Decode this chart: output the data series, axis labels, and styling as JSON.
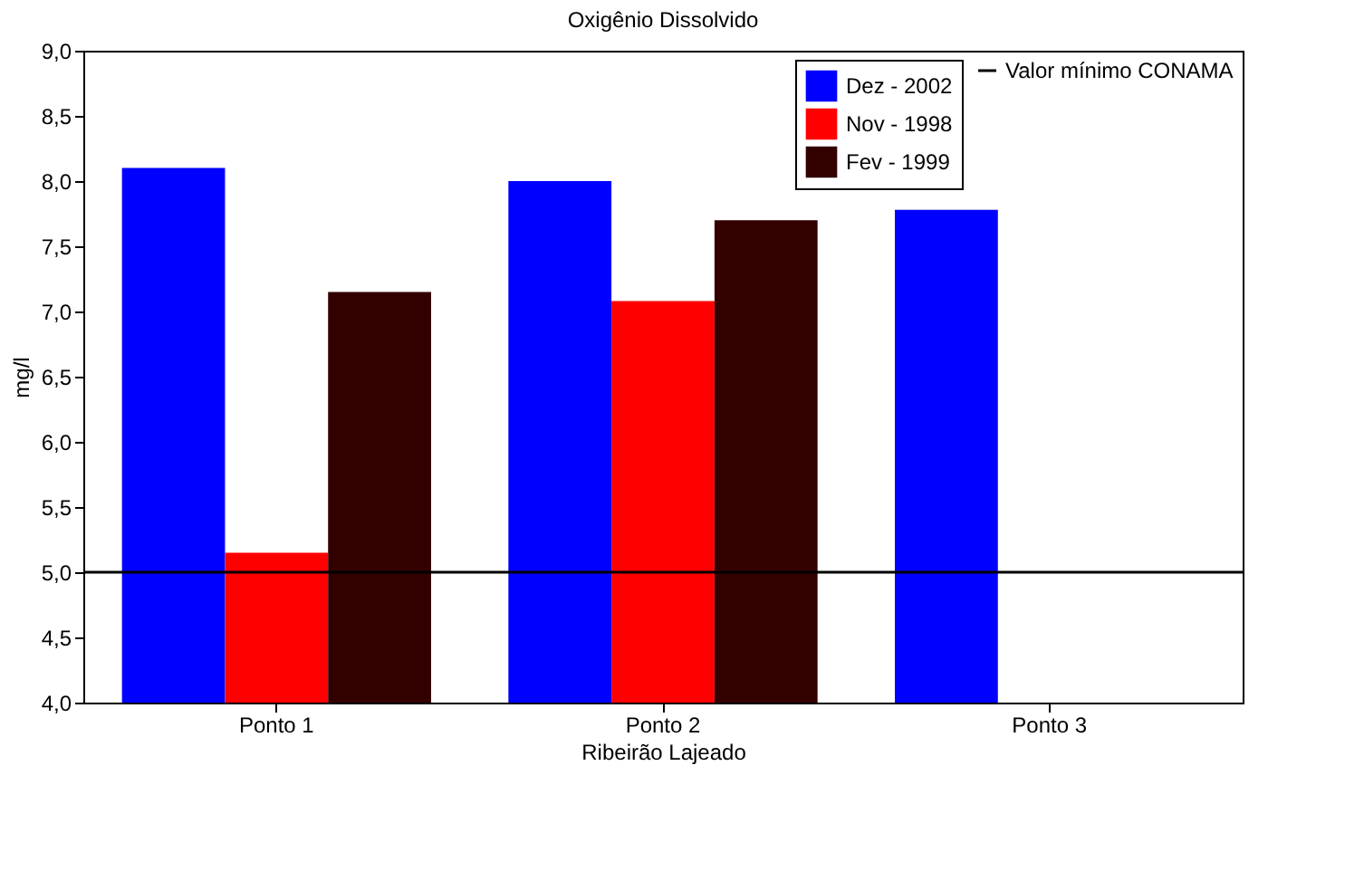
{
  "chart_data": {
    "type": "bar",
    "title": "Oxigênio Dissolvido",
    "xlabel": "Ribeirão Lajeado",
    "ylabel": "mg/l",
    "categories": [
      "Ponto 1",
      "Ponto 2",
      "Ponto 3"
    ],
    "series": [
      {
        "name": "Dez - 2002",
        "color": "#0000ff",
        "values": [
          8.1,
          8.0,
          7.78
        ]
      },
      {
        "name": "Nov - 1998",
        "color": "#ff0000",
        "values": [
          5.15,
          7.08,
          null
        ]
      },
      {
        "name": "Fev - 1999",
        "color": "#330000",
        "values": [
          7.15,
          7.7,
          null
        ]
      }
    ],
    "ylim": [
      4.0,
      9.0
    ],
    "yticks": [
      {
        "value": 4.0,
        "label": "4,0"
      },
      {
        "value": 4.5,
        "label": "4,5"
      },
      {
        "value": 5.0,
        "label": "5,0"
      },
      {
        "value": 5.5,
        "label": "5,5"
      },
      {
        "value": 6.0,
        "label": "6,0"
      },
      {
        "value": 6.5,
        "label": "6,5"
      },
      {
        "value": 7.0,
        "label": "7,0"
      },
      {
        "value": 7.5,
        "label": "7,5"
      },
      {
        "value": 8.0,
        "label": "8,0"
      },
      {
        "value": 8.5,
        "label": "8,5"
      },
      {
        "value": 9.0,
        "label": "9,0"
      }
    ],
    "ref_lines": [
      {
        "axis": "y",
        "value": 5.0,
        "label": "Valor mínimo CONAMA",
        "color": "#000000",
        "line_style": "solid"
      }
    ],
    "grid": false,
    "legend": "top right"
  }
}
